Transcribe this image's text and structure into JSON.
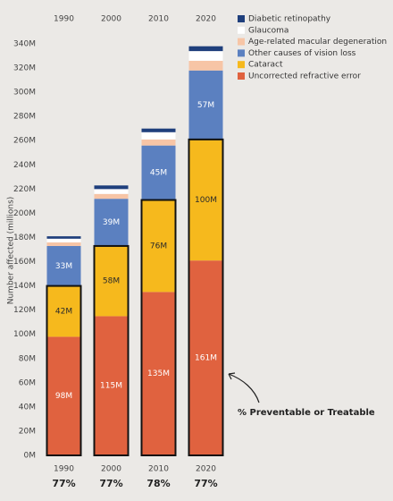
{
  "chart_data": {
    "type": "stacked_bar",
    "y_label": "Number affected (millions)",
    "categories": [
      "1990",
      "2000",
      "2010",
      "2020"
    ],
    "series": [
      {
        "name": "Uncorrected refractive error",
        "color": "#e0623f",
        "label_color": "#ffffff",
        "values": [
          98,
          115,
          135,
          161
        ],
        "value_labels": [
          "98M",
          "115M",
          "135M",
          "161M"
        ]
      },
      {
        "name": "Cataract",
        "color": "#f6b91d",
        "label_color": "#2a2a2a",
        "values": [
          42,
          58,
          76,
          100
        ],
        "value_labels": [
          "42M",
          "58M",
          "76M",
          "100M"
        ]
      },
      {
        "name": "Other causes of vision loss",
        "color": "#5b80c0",
        "label_color": "#ffffff",
        "values": [
          33,
          39,
          45,
          57
        ],
        "value_labels": [
          "33M",
          "39M",
          "45M",
          "57M"
        ]
      },
      {
        "name": "Age-related macular degeneration",
        "color": "#f7c5a6",
        "values": [
          3,
          4,
          5,
          8
        ]
      },
      {
        "name": "Glaucoma",
        "color": "#ffffff",
        "values": [
          3,
          4,
          6,
          8
        ]
      },
      {
        "name": "Diabetic retinopathy",
        "color": "#1f3f7c",
        "values": [
          2,
          3,
          3,
          4
        ]
      }
    ],
    "ylim": [
      0,
      340
    ],
    "yticks": [
      {
        "value": 0,
        "label": "0M"
      },
      {
        "value": 20,
        "label": "20M"
      },
      {
        "value": 40,
        "label": "40M"
      },
      {
        "value": 60,
        "label": "60M"
      },
      {
        "value": 80,
        "label": "80M"
      },
      {
        "value": 100,
        "label": "100M"
      },
      {
        "value": 120,
        "label": "120M"
      },
      {
        "value": 140,
        "label": "140M"
      },
      {
        "value": 160,
        "label": "160M"
      },
      {
        "value": 180,
        "label": "180M"
      },
      {
        "value": 200,
        "label": "200M"
      },
      {
        "value": 220,
        "label": "220M"
      },
      {
        "value": 240,
        "label": "240M"
      },
      {
        "value": 260,
        "label": "260M"
      },
      {
        "value": 280,
        "label": "280M"
      },
      {
        "value": 300,
        "label": "300M"
      },
      {
        "value": 320,
        "label": "320M"
      },
      {
        "value": 340,
        "label": "340M"
      }
    ],
    "annotation": "% Preventable or Treatable",
    "preventable_labels": [
      "77%",
      "77%",
      "78%",
      "77%"
    ]
  }
}
